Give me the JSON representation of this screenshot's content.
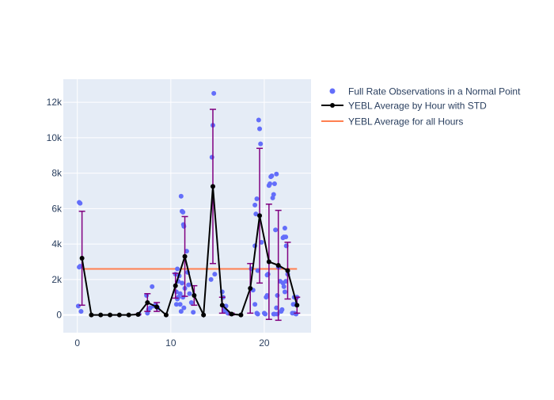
{
  "chart_data": {
    "type": "scatter",
    "xlim": [
      -1.5,
      25
    ],
    "ylim": [
      -1000,
      13300
    ],
    "x_ticks": [
      {
        "value": 0,
        "label": "0"
      },
      {
        "value": 10,
        "label": "10"
      },
      {
        "value": 20,
        "label": "20"
      }
    ],
    "y_ticks": [
      {
        "value": 0,
        "label": "0"
      },
      {
        "value": 2000,
        "label": "2k"
      },
      {
        "value": 4000,
        "label": "4k"
      },
      {
        "value": 6000,
        "label": "6k"
      },
      {
        "value": 8000,
        "label": "8k"
      },
      {
        "value": 10000,
        "label": "10k"
      },
      {
        "value": 12000,
        "label": "12k"
      }
    ],
    "grid": true,
    "legend_position": "right",
    "colors": {
      "plot_bg": "#e5ecf6",
      "grid": "#ffffff",
      "points": "#636efa",
      "avg_line": "#000000",
      "error_bars": "#800080",
      "overall_line": "#ff7f50",
      "tick_text": "#2a3f5f"
    },
    "series": [
      {
        "name": "Full Rate Observations in a Normal Point",
        "kind": "scatter",
        "points": [
          [
            0.2,
            6350
          ],
          [
            0.3,
            6300
          ],
          [
            0.2,
            2700
          ],
          [
            0.3,
            2750
          ],
          [
            0.1,
            500
          ],
          [
            0.4,
            200
          ],
          [
            6.6,
            50
          ],
          [
            7.4,
            1100
          ],
          [
            7.5,
            100
          ],
          [
            7.6,
            300
          ],
          [
            7.8,
            400
          ],
          [
            8.0,
            1600
          ],
          [
            8.2,
            500
          ],
          [
            8.4,
            550
          ],
          [
            8.6,
            400
          ],
          [
            10.5,
            2300
          ],
          [
            10.6,
            1300
          ],
          [
            10.7,
            900
          ],
          [
            10.8,
            1900
          ],
          [
            10.9,
            2200
          ],
          [
            11.0,
            600
          ],
          [
            11.0,
            1200
          ],
          [
            11.1,
            6700
          ],
          [
            11.2,
            5850
          ],
          [
            11.3,
            5800
          ],
          [
            11.35,
            5100
          ],
          [
            11.4,
            5000
          ],
          [
            11.2,
            1800
          ],
          [
            11.3,
            1000
          ],
          [
            11.4,
            400
          ],
          [
            11.5,
            1500
          ],
          [
            11.7,
            3600
          ],
          [
            11.8,
            2400
          ],
          [
            11.9,
            1700
          ],
          [
            12.0,
            1200
          ],
          [
            12.2,
            700
          ],
          [
            12.4,
            150
          ],
          [
            10.7,
            2600
          ],
          [
            10.8,
            1000
          ],
          [
            11.1,
            200
          ],
          [
            10.6,
            600
          ],
          [
            14.3,
            2000
          ],
          [
            14.4,
            8900
          ],
          [
            14.5,
            10700
          ],
          [
            14.6,
            12500
          ],
          [
            14.7,
            2300
          ],
          [
            15.5,
            1300
          ],
          [
            15.6,
            1000
          ],
          [
            15.7,
            300
          ],
          [
            15.8,
            200
          ],
          [
            15.9,
            500
          ],
          [
            16.1,
            100
          ],
          [
            18.6,
            2600
          ],
          [
            18.8,
            1400
          ],
          [
            19.0,
            3900
          ],
          [
            19.0,
            6200
          ],
          [
            19.1,
            5700
          ],
          [
            19.2,
            6550
          ],
          [
            19.3,
            2500
          ],
          [
            19.4,
            11000
          ],
          [
            19.5,
            10500
          ],
          [
            19.6,
            9650
          ],
          [
            19.7,
            4100
          ],
          [
            19.0,
            600
          ],
          [
            19.2,
            100
          ],
          [
            19.3,
            50
          ],
          [
            20.0,
            100
          ],
          [
            20.1,
            50
          ],
          [
            20.2,
            1000
          ],
          [
            20.3,
            1100
          ],
          [
            20.5,
            7300
          ],
          [
            20.6,
            7400
          ],
          [
            20.7,
            7800
          ],
          [
            20.8,
            7850
          ],
          [
            20.9,
            6600
          ],
          [
            21.0,
            6800
          ],
          [
            21.1,
            7400
          ],
          [
            21.3,
            7950
          ],
          [
            21.2,
            4800
          ],
          [
            21.4,
            1100
          ],
          [
            21.5,
            2700
          ],
          [
            21.6,
            2700
          ],
          [
            21.7,
            1900
          ],
          [
            21.8,
            200
          ],
          [
            21.9,
            300
          ],
          [
            21.0,
            50
          ],
          [
            21.1,
            50
          ],
          [
            21.3,
            400
          ],
          [
            21.4,
            50
          ],
          [
            20.4,
            2300
          ],
          [
            20.3,
            2250
          ],
          [
            22.0,
            4350
          ],
          [
            22.1,
            4400
          ],
          [
            22.2,
            4900
          ],
          [
            22.3,
            4400
          ],
          [
            22.35,
            3900
          ],
          [
            22.0,
            1800
          ],
          [
            22.1,
            1600
          ],
          [
            22.2,
            1300
          ],
          [
            22.3,
            1900
          ],
          [
            22.5,
            2300
          ],
          [
            23.0,
            100
          ],
          [
            23.1,
            600
          ],
          [
            23.2,
            1000
          ],
          [
            23.3,
            600
          ],
          [
            23.4,
            50
          ],
          [
            23.5,
            1000
          ],
          [
            23.2,
            100
          ]
        ]
      },
      {
        "name": "YEBL Average by Hour with STD",
        "kind": "line",
        "points": [
          [
            0.5,
            3200,
            2650
          ],
          [
            1.5,
            0,
            0
          ],
          [
            2.5,
            0,
            0
          ],
          [
            3.5,
            0,
            0
          ],
          [
            4.5,
            0,
            0
          ],
          [
            5.5,
            0,
            0
          ],
          [
            6.5,
            30,
            20
          ],
          [
            7.5,
            700,
            500
          ],
          [
            8.5,
            450,
            250
          ],
          [
            9.5,
            0,
            0
          ],
          [
            10.5,
            1650,
            700
          ],
          [
            11.5,
            3300,
            2250
          ],
          [
            12.5,
            1100,
            550
          ],
          [
            13.5,
            0,
            0
          ],
          [
            14.5,
            7250,
            4350
          ],
          [
            15.5,
            550,
            450
          ],
          [
            16.5,
            50,
            50
          ],
          [
            17.5,
            0,
            0
          ],
          [
            18.5,
            1500,
            1400
          ],
          [
            19.5,
            5600,
            3800
          ],
          [
            20.5,
            3000,
            3250
          ],
          [
            21.5,
            2800,
            3100
          ],
          [
            22.5,
            2500,
            1600
          ],
          [
            23.5,
            550,
            450
          ]
        ]
      },
      {
        "name": "YEBL Average for all Hours",
        "kind": "hline",
        "y": 2600,
        "x_range": [
          0.5,
          23.5
        ]
      }
    ]
  }
}
